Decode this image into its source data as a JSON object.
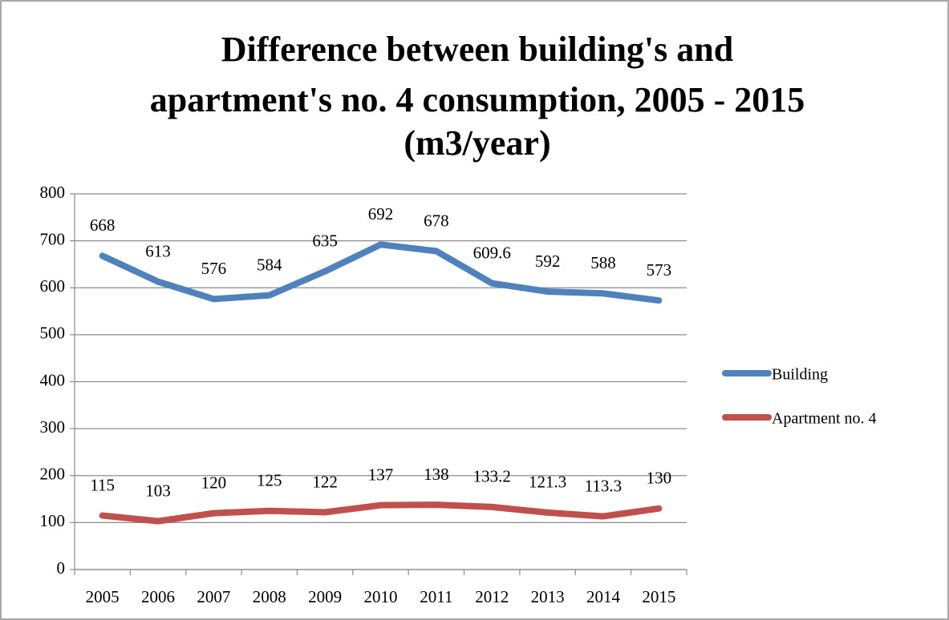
{
  "chart_data": {
    "type": "line",
    "title": [
      "Difference between building's and",
      "apartment's no. 4 consumption, 2005 - 2015",
      "(m3/year)"
    ],
    "categories": [
      "2005",
      "2006",
      "2007",
      "2008",
      "2009",
      "2010",
      "2011",
      "2012",
      "2013",
      "2014",
      "2015"
    ],
    "series": [
      {
        "name": "Building",
        "color": "#4f81bd",
        "values": [
          668,
          613,
          576,
          584,
          635,
          692,
          678,
          609.6,
          592,
          588,
          573
        ]
      },
      {
        "name": "Apartment no. 4",
        "color": "#c0504d",
        "values": [
          115,
          103,
          120,
          125,
          122,
          137,
          138,
          133.2,
          121.3,
          113.3,
          130
        ]
      }
    ],
    "ylim": [
      0,
      800
    ],
    "yticks": [
      0,
      100,
      200,
      300,
      400,
      500,
      600,
      700,
      800
    ],
    "grid": true,
    "legend": "right"
  }
}
